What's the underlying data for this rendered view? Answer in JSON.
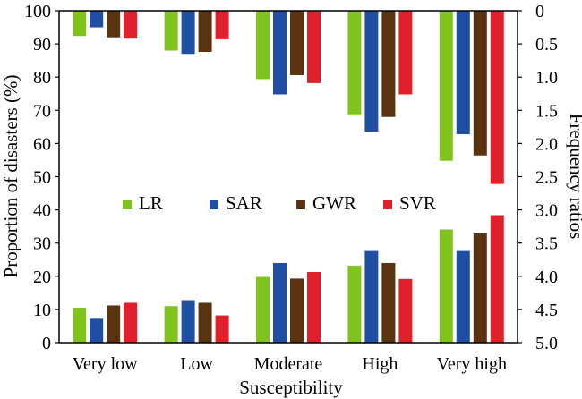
{
  "chart_data": {
    "type": "bar",
    "xlabel": "Susceptibility",
    "ylabel": "Proportion of disasters (%)",
    "y2label": "Frequency ratios",
    "categories": [
      "Very low",
      "Low",
      "Moderate",
      "High",
      "Very high"
    ],
    "ylim": [
      0,
      100
    ],
    "yticks": [
      "0",
      "10",
      "20",
      "30",
      "40",
      "50",
      "60",
      "70",
      "80",
      "90",
      "100"
    ],
    "y2lim": [
      0,
      5.0
    ],
    "y2_inverted": true,
    "y2ticks": [
      "0",
      "0.5",
      "1.0",
      "1.5",
      "2.0",
      "2.5",
      "3.0",
      "3.5",
      "4.0",
      "4.5",
      "5.0"
    ],
    "legend_position": "middle",
    "series": [
      {
        "name": "LR",
        "color": "#7fc31c",
        "proportion": [
          10.5,
          11.0,
          19.8,
          23.2,
          34.1
        ],
        "frequency_ratio": [
          0.38,
          0.6,
          1.03,
          1.56,
          2.26
        ]
      },
      {
        "name": "SAR",
        "color": "#1f4ea3",
        "proportion": [
          7.2,
          12.8,
          24.0,
          27.6,
          27.6
        ],
        "frequency_ratio": [
          0.25,
          0.65,
          1.26,
          1.82,
          1.86
        ]
      },
      {
        "name": "GWR",
        "color": "#5a3310",
        "proportion": [
          11.2,
          12.0,
          19.3,
          24.0,
          32.9
        ],
        "frequency_ratio": [
          0.4,
          0.62,
          0.97,
          1.6,
          2.18
        ]
      },
      {
        "name": "SVR",
        "color": "#e0202a",
        "proportion": [
          12.0,
          8.2,
          21.3,
          19.2,
          38.4
        ],
        "frequency_ratio": [
          0.42,
          0.43,
          1.09,
          1.26,
          2.61
        ]
      }
    ]
  }
}
